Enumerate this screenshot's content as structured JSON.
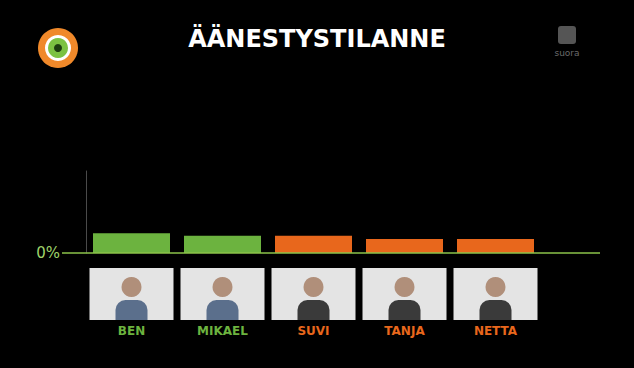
{
  "chart_data": {
    "type": "bar",
    "title": "ÄÄNESTYSTILANNE",
    "categories": [
      "BEN",
      "MIKAEL",
      "SUVI",
      "TANJA",
      "NETTA"
    ],
    "values": [
      24,
      21,
      21,
      17,
      17
    ],
    "colors": [
      "#6cb33f",
      "#6cb33f",
      "#e8671c",
      "#e8671c",
      "#e8671c"
    ],
    "ylim": [
      0,
      100
    ],
    "yticks": [
      {
        "value": 0,
        "label": "0%"
      }
    ],
    "grid": false,
    "annotations": [
      "suora"
    ]
  }
}
